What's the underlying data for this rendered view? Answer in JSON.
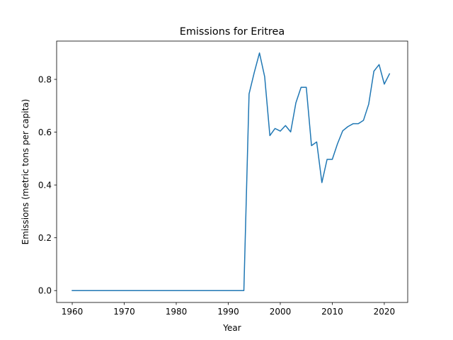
{
  "chart_data": {
    "type": "line",
    "title": "Emissions for Eritrea",
    "xlabel": "Year",
    "ylabel": "Emissions (metric tons per capita)",
    "xlim": [
      1957,
      2024.5
    ],
    "ylim": [
      -0.045,
      0.945
    ],
    "xticks": [
      1960,
      1970,
      1980,
      1990,
      2000,
      2010,
      2020
    ],
    "yticks": [
      0.0,
      0.2,
      0.4,
      0.6,
      0.8
    ],
    "ytick_labels": [
      "0.0",
      "0.2",
      "0.4",
      "0.6",
      "0.8"
    ],
    "grid": false,
    "legend": "none",
    "series": [
      {
        "color": "#1f77b4",
        "x": [
          1960,
          1961,
          1962,
          1963,
          1964,
          1965,
          1966,
          1967,
          1968,
          1969,
          1970,
          1971,
          1972,
          1973,
          1974,
          1975,
          1976,
          1977,
          1978,
          1979,
          1980,
          1981,
          1982,
          1983,
          1984,
          1985,
          1986,
          1987,
          1988,
          1989,
          1990,
          1991,
          1992,
          1993,
          1994,
          1995,
          1996,
          1997,
          1998,
          1999,
          2000,
          2001,
          2002,
          2003,
          2004,
          2005,
          2006,
          2007,
          2008,
          2009,
          2010,
          2011,
          2012,
          2013,
          2014,
          2015,
          2016,
          2017,
          2018,
          2019,
          2020,
          2021
        ],
        "values": [
          0,
          0,
          0,
          0,
          0,
          0,
          0,
          0,
          0,
          0,
          0,
          0,
          0,
          0,
          0,
          0,
          0,
          0,
          0,
          0,
          0,
          0,
          0,
          0,
          0,
          0,
          0,
          0,
          0,
          0,
          0,
          0,
          0,
          0,
          0.745,
          0.826,
          0.9,
          0.81,
          0.587,
          0.614,
          0.604,
          0.625,
          0.601,
          0.711,
          0.77,
          0.77,
          0.549,
          0.563,
          0.409,
          0.497,
          0.497,
          0.556,
          0.605,
          0.621,
          0.632,
          0.632,
          0.645,
          0.706,
          0.831,
          0.856,
          0.782,
          0.821
        ]
      }
    ]
  }
}
